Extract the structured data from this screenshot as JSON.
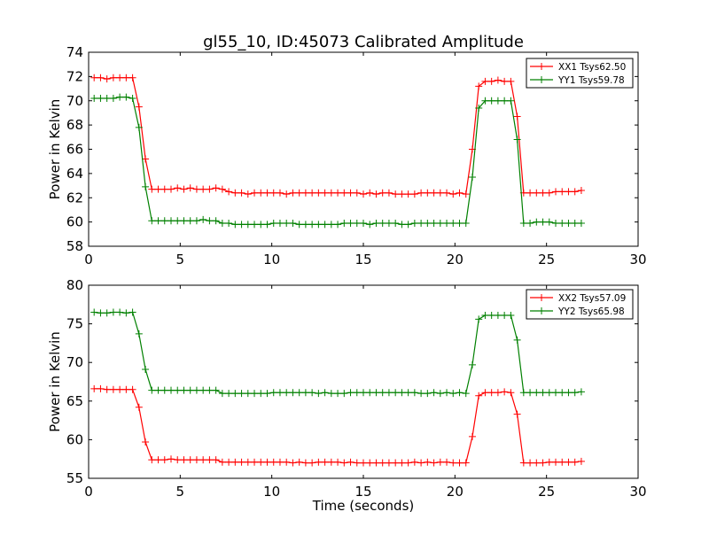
{
  "figure": {
    "title": "gl55_10, ID:45073 Calibrated Amplitude",
    "xlabel": "Time (seconds)"
  },
  "chart_data": [
    {
      "type": "line",
      "title": "gl55_10, ID:45073 Calibrated Amplitude",
      "xlabel": "",
      "ylabel": "Power in Kelvin",
      "xlim": [
        0,
        30
      ],
      "ylim": [
        58,
        74
      ],
      "xticks": [
        "0",
        "5",
        "10",
        "15",
        "20",
        "25",
        "30"
      ],
      "yticks": [
        "58",
        "60",
        "62",
        "64",
        "66",
        "68",
        "70",
        "72",
        "74"
      ],
      "xtick_values": [
        0,
        5,
        10,
        15,
        20,
        25,
        30
      ],
      "ytick_values": [
        58,
        60,
        62,
        64,
        66,
        68,
        70,
        72,
        74
      ],
      "grid": false,
      "legend": "top-right",
      "series": [
        {
          "name": "XX1 Tsys62.50",
          "color": "#ff0000",
          "marker": "plus",
          "x": [
            0.3,
            0.65,
            1.0,
            1.35,
            1.7,
            2.05,
            2.4,
            2.75,
            3.1,
            3.45,
            3.8,
            4.15,
            4.5,
            4.85,
            5.2,
            5.55,
            5.9,
            6.25,
            6.6,
            6.95,
            7.3,
            7.65,
            8.0,
            8.35,
            8.7,
            9.05,
            9.4,
            9.75,
            10.1,
            10.45,
            10.8,
            11.15,
            11.5,
            11.85,
            12.2,
            12.55,
            12.9,
            13.25,
            13.6,
            13.95,
            14.3,
            14.65,
            15.0,
            15.35,
            15.7,
            16.05,
            16.4,
            16.75,
            17.1,
            17.45,
            17.8,
            18.15,
            18.5,
            18.85,
            19.2,
            19.55,
            19.9,
            20.25,
            20.6,
            20.95,
            21.3,
            21.65,
            22.0,
            22.35,
            22.7,
            23.05,
            23.4,
            23.75,
            24.1,
            24.45,
            24.8,
            25.15,
            25.5,
            25.85,
            26.2,
            26.55,
            26.9
          ],
          "y": [
            71.9,
            71.9,
            71.8,
            71.9,
            71.9,
            71.9,
            71.9,
            69.5,
            65.2,
            62.7,
            62.7,
            62.7,
            62.7,
            62.8,
            62.7,
            62.8,
            62.7,
            62.7,
            62.7,
            62.8,
            62.7,
            62.5,
            62.4,
            62.4,
            62.3,
            62.4,
            62.4,
            62.4,
            62.4,
            62.4,
            62.3,
            62.4,
            62.4,
            62.4,
            62.4,
            62.4,
            62.4,
            62.4,
            62.4,
            62.4,
            62.4,
            62.4,
            62.3,
            62.4,
            62.3,
            62.4,
            62.4,
            62.3,
            62.3,
            62.3,
            62.3,
            62.4,
            62.4,
            62.4,
            62.4,
            62.4,
            62.3,
            62.4,
            62.3,
            66.0,
            71.2,
            71.6,
            71.6,
            71.7,
            71.6,
            71.6,
            68.7,
            62.4,
            62.4,
            62.4,
            62.4,
            62.4,
            62.5,
            62.5,
            62.5,
            62.5,
            62.6
          ]
        },
        {
          "name": "YY1 Tsys59.78",
          "color": "#008000",
          "marker": "plus",
          "x": [
            0.3,
            0.65,
            1.0,
            1.35,
            1.7,
            2.05,
            2.4,
            2.75,
            3.1,
            3.45,
            3.8,
            4.15,
            4.5,
            4.85,
            5.2,
            5.55,
            5.9,
            6.25,
            6.6,
            6.95,
            7.3,
            7.65,
            8.0,
            8.35,
            8.7,
            9.05,
            9.4,
            9.75,
            10.1,
            10.45,
            10.8,
            11.15,
            11.5,
            11.85,
            12.2,
            12.55,
            12.9,
            13.25,
            13.6,
            13.95,
            14.3,
            14.65,
            15.0,
            15.35,
            15.7,
            16.05,
            16.4,
            16.75,
            17.1,
            17.45,
            17.8,
            18.15,
            18.5,
            18.85,
            19.2,
            19.55,
            19.9,
            20.25,
            20.6,
            20.95,
            21.3,
            21.65,
            22.0,
            22.35,
            22.7,
            23.05,
            23.4,
            23.75,
            24.1,
            24.45,
            24.8,
            25.15,
            25.5,
            25.85,
            26.2,
            26.55,
            26.9
          ],
          "y": [
            70.2,
            70.2,
            70.2,
            70.2,
            70.3,
            70.3,
            70.2,
            67.8,
            62.9,
            60.1,
            60.1,
            60.1,
            60.1,
            60.1,
            60.1,
            60.1,
            60.1,
            60.2,
            60.1,
            60.1,
            59.9,
            59.9,
            59.8,
            59.8,
            59.8,
            59.8,
            59.8,
            59.8,
            59.9,
            59.9,
            59.9,
            59.9,
            59.8,
            59.8,
            59.8,
            59.8,
            59.8,
            59.8,
            59.8,
            59.9,
            59.9,
            59.9,
            59.9,
            59.8,
            59.9,
            59.9,
            59.9,
            59.9,
            59.8,
            59.8,
            59.9,
            59.9,
            59.9,
            59.9,
            59.9,
            59.9,
            59.9,
            59.9,
            59.9,
            63.7,
            69.4,
            70.0,
            70.0,
            70.0,
            70.0,
            70.0,
            66.8,
            59.9,
            59.9,
            60.0,
            60.0,
            60.0,
            59.9,
            59.9,
            59.9,
            59.9,
            59.9
          ]
        }
      ]
    },
    {
      "type": "line",
      "title": "",
      "xlabel": "Time (seconds)",
      "ylabel": "Power in Kelvin",
      "xlim": [
        0,
        30
      ],
      "ylim": [
        55,
        80
      ],
      "xticks": [
        "0",
        "5",
        "10",
        "15",
        "20",
        "25",
        "30"
      ],
      "yticks": [
        "55",
        "60",
        "65",
        "70",
        "75",
        "80"
      ],
      "xtick_values": [
        0,
        5,
        10,
        15,
        20,
        25,
        30
      ],
      "ytick_values": [
        55,
        60,
        65,
        70,
        75,
        80
      ],
      "grid": false,
      "legend": "top-right",
      "series": [
        {
          "name": "XX2 Tsys57.09",
          "color": "#ff0000",
          "marker": "plus",
          "x": [
            0.3,
            0.65,
            1.0,
            1.35,
            1.7,
            2.05,
            2.4,
            2.75,
            3.1,
            3.45,
            3.8,
            4.15,
            4.5,
            4.85,
            5.2,
            5.55,
            5.9,
            6.25,
            6.6,
            6.95,
            7.3,
            7.65,
            8.0,
            8.35,
            8.7,
            9.05,
            9.4,
            9.75,
            10.1,
            10.45,
            10.8,
            11.15,
            11.5,
            11.85,
            12.2,
            12.55,
            12.9,
            13.25,
            13.6,
            13.95,
            14.3,
            14.65,
            15.0,
            15.35,
            15.7,
            16.05,
            16.4,
            16.75,
            17.1,
            17.45,
            17.8,
            18.15,
            18.5,
            18.85,
            19.2,
            19.55,
            19.9,
            20.25,
            20.6,
            20.95,
            21.3,
            21.65,
            22.0,
            22.35,
            22.7,
            23.05,
            23.4,
            23.75,
            24.1,
            24.45,
            24.8,
            25.15,
            25.5,
            25.85,
            26.2,
            26.55,
            26.9
          ],
          "y": [
            66.6,
            66.6,
            66.5,
            66.5,
            66.5,
            66.5,
            66.5,
            64.2,
            59.7,
            57.4,
            57.4,
            57.4,
            57.5,
            57.4,
            57.4,
            57.4,
            57.4,
            57.4,
            57.4,
            57.4,
            57.1,
            57.1,
            57.1,
            57.1,
            57.1,
            57.1,
            57.1,
            57.1,
            57.1,
            57.1,
            57.1,
            57.0,
            57.1,
            57.0,
            57.0,
            57.1,
            57.1,
            57.1,
            57.1,
            57.0,
            57.1,
            57.0,
            57.0,
            57.0,
            57.0,
            57.0,
            57.0,
            57.0,
            57.0,
            57.0,
            57.1,
            57.0,
            57.1,
            57.0,
            57.1,
            57.1,
            57.0,
            57.0,
            57.0,
            60.4,
            65.7,
            66.1,
            66.1,
            66.1,
            66.2,
            66.1,
            63.3,
            57.0,
            57.0,
            57.0,
            57.0,
            57.1,
            57.1,
            57.1,
            57.1,
            57.1,
            57.2
          ]
        },
        {
          "name": "YY2 Tsys65.98",
          "color": "#008000",
          "marker": "plus",
          "x": [
            0.3,
            0.65,
            1.0,
            1.35,
            1.7,
            2.05,
            2.4,
            2.75,
            3.1,
            3.45,
            3.8,
            4.15,
            4.5,
            4.85,
            5.2,
            5.55,
            5.9,
            6.25,
            6.6,
            6.95,
            7.3,
            7.65,
            8.0,
            8.35,
            8.7,
            9.05,
            9.4,
            9.75,
            10.1,
            10.45,
            10.8,
            11.15,
            11.5,
            11.85,
            12.2,
            12.55,
            12.9,
            13.25,
            13.6,
            13.95,
            14.3,
            14.65,
            15.0,
            15.35,
            15.7,
            16.05,
            16.4,
            16.75,
            17.1,
            17.45,
            17.8,
            18.15,
            18.5,
            18.85,
            19.2,
            19.55,
            19.9,
            20.25,
            20.6,
            20.95,
            21.3,
            21.65,
            22.0,
            22.35,
            22.7,
            23.05,
            23.4,
            23.75,
            24.1,
            24.45,
            24.8,
            25.15,
            25.5,
            25.85,
            26.2,
            26.55,
            26.9
          ],
          "y": [
            76.5,
            76.4,
            76.4,
            76.5,
            76.5,
            76.4,
            76.5,
            73.7,
            69.1,
            66.4,
            66.4,
            66.4,
            66.4,
            66.4,
            66.4,
            66.4,
            66.4,
            66.4,
            66.4,
            66.4,
            66.0,
            66.0,
            66.0,
            66.0,
            66.0,
            66.0,
            66.0,
            66.0,
            66.1,
            66.1,
            66.1,
            66.1,
            66.1,
            66.1,
            66.1,
            66.0,
            66.1,
            66.0,
            66.0,
            66.0,
            66.1,
            66.1,
            66.1,
            66.1,
            66.1,
            66.1,
            66.1,
            66.1,
            66.1,
            66.1,
            66.1,
            66.0,
            66.0,
            66.1,
            66.0,
            66.1,
            66.0,
            66.1,
            66.0,
            69.7,
            75.6,
            76.1,
            76.1,
            76.1,
            76.1,
            76.1,
            72.9,
            66.1,
            66.1,
            66.1,
            66.1,
            66.1,
            66.1,
            66.1,
            66.1,
            66.1,
            66.2
          ]
        }
      ]
    }
  ]
}
